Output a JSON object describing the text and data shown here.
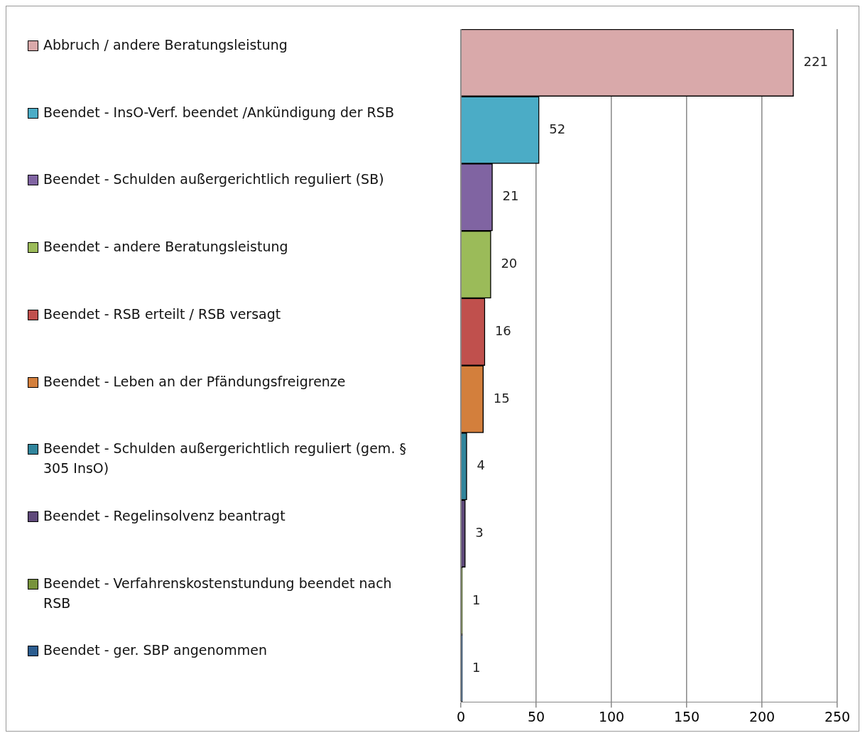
{
  "chart_data": {
    "type": "bar",
    "orientation": "horizontal",
    "categories": [
      null
    ],
    "series": [
      {
        "name": "Abbruch / andere Beratungsleistung",
        "color": "#d9a9aa",
        "values": [
          221
        ]
      },
      {
        "name": "Beendet - InsO-Verf. beendet /Ankündigung der RSB",
        "color": "#4bacc6",
        "values": [
          52
        ]
      },
      {
        "name": "Beendet - Schulden außergerichtlich reguliert (SB)",
        "color": "#8064a2",
        "values": [
          21
        ]
      },
      {
        "name": "Beendet - andere Beratungsleistung",
        "color": "#9bbb59",
        "values": [
          20
        ]
      },
      {
        "name": "Beendet - RSB erteilt / RSB versagt",
        "color": "#c0504d",
        "values": [
          16
        ]
      },
      {
        "name": "Beendet - Leben an der Pfändungsfreigrenze",
        "color": "#d37f3c",
        "values": [
          15
        ]
      },
      {
        "name": "Beendet - Schulden außergerichtlich reguliert (gem. § 305 InsO)",
        "color": "#31859c",
        "values": [
          4
        ]
      },
      {
        "name": "Beendet - Regelinsolvenz beantragt",
        "color": "#5f497a",
        "values": [
          3
        ]
      },
      {
        "name": "Beendet - Verfahrenskostenstundung beendet nach RSB",
        "color": "#77933c",
        "values": [
          1
        ]
      },
      {
        "name": "Beendet - ger. SBP angenommen",
        "color": "#2c5d8f",
        "values": [
          1
        ]
      }
    ],
    "xlim": [
      0,
      250
    ],
    "xticks": [
      0,
      50,
      100,
      150,
      200,
      250
    ],
    "grid": "x",
    "data_labels": true,
    "legend": "left"
  }
}
